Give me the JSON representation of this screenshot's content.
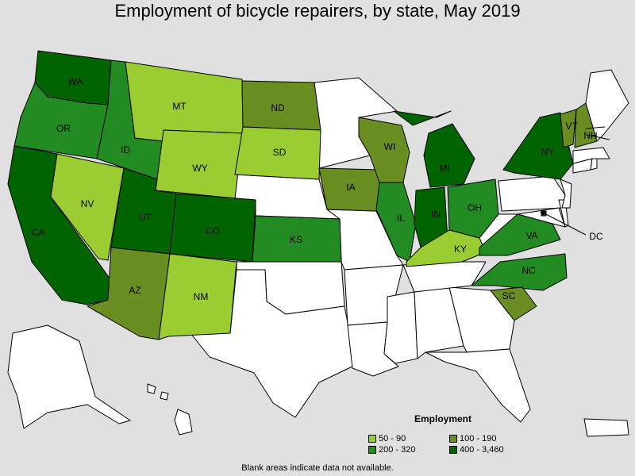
{
  "title": "Employment of bicycle repairers, by state, May 2019",
  "legend": {
    "title": "Employment",
    "items": [
      {
        "label": "50 - 90",
        "color": "#9acd32"
      },
      {
        "label": "100 - 190",
        "color": "#6b8e23"
      },
      {
        "label": "200 - 320",
        "color": "#228b22"
      },
      {
        "label": "400 - 3,460",
        "color": "#006400"
      }
    ]
  },
  "footnote": "Blank areas indicate data not available.",
  "states": [
    {
      "abbr": "WA",
      "category": "400 - 3,460"
    },
    {
      "abbr": "OR",
      "category": "200 - 320"
    },
    {
      "abbr": "CA",
      "category": "400 - 3,460"
    },
    {
      "abbr": "ID",
      "category": "200 - 320"
    },
    {
      "abbr": "NV",
      "category": "50 - 90"
    },
    {
      "abbr": "MT",
      "category": "50 - 90"
    },
    {
      "abbr": "WY",
      "category": "50 - 90"
    },
    {
      "abbr": "UT",
      "category": "400 - 3,460"
    },
    {
      "abbr": "AZ",
      "category": "100 - 190"
    },
    {
      "abbr": "CO",
      "category": "400 - 3,460"
    },
    {
      "abbr": "NM",
      "category": "50 - 90"
    },
    {
      "abbr": "ND",
      "category": "100 - 190"
    },
    {
      "abbr": "SD",
      "category": "50 - 90"
    },
    {
      "abbr": "KS",
      "category": "200 - 320"
    },
    {
      "abbr": "IA",
      "category": "100 - 190"
    },
    {
      "abbr": "WI",
      "category": "100 - 190"
    },
    {
      "abbr": "IL",
      "category": "200 - 320"
    },
    {
      "abbr": "MI",
      "category": "400 - 3,460"
    },
    {
      "abbr": "IN",
      "category": "400 - 3,460"
    },
    {
      "abbr": "OH",
      "category": "200 - 320"
    },
    {
      "abbr": "KY",
      "category": "50 - 90"
    },
    {
      "abbr": "VA",
      "category": "200 - 320"
    },
    {
      "abbr": "NC",
      "category": "200 - 320"
    },
    {
      "abbr": "SC",
      "category": "100 - 190"
    },
    {
      "abbr": "NY",
      "category": "400 - 3,460"
    },
    {
      "abbr": "VT",
      "category": "100 - 190"
    },
    {
      "abbr": "NH",
      "category": "100 - 190"
    },
    {
      "abbr": "DC",
      "category": "400 - 3,460"
    }
  ],
  "blank_color": "#ffffff"
}
